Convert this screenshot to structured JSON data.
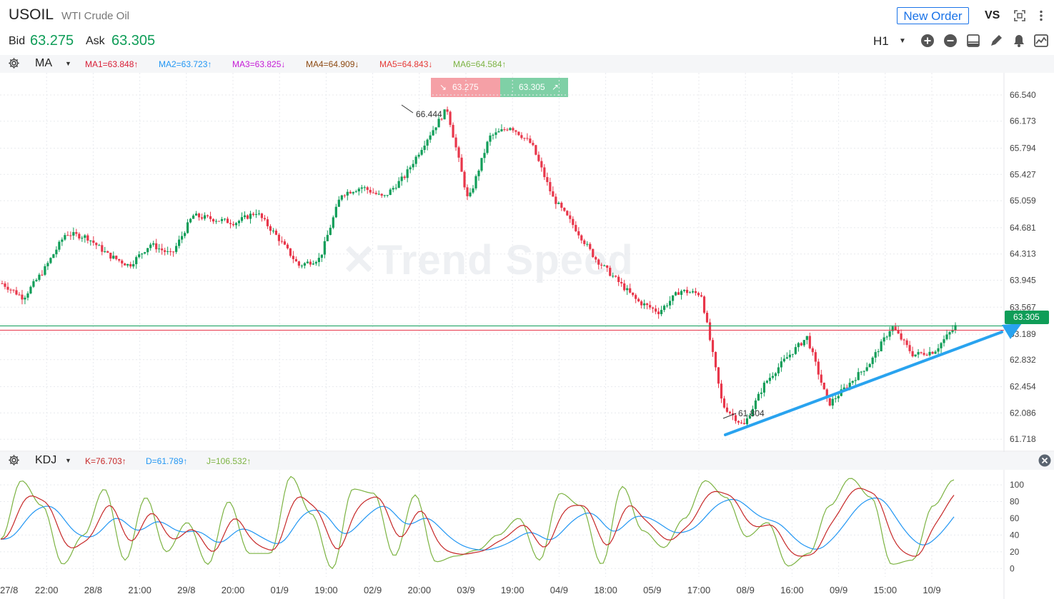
{
  "header": {
    "symbol": "USOIL",
    "name": "WTI Crude Oil",
    "bid_label": "Bid",
    "bid_value": "63.275",
    "ask_label": "Ask",
    "ask_value": "63.305",
    "new_order_label": "New Order",
    "vs_label": "VS",
    "timeframe": "H1"
  },
  "ma_bar": {
    "name": "MA",
    "items": [
      {
        "label": "MA1=63.848↑",
        "color": "#d81e36"
      },
      {
        "label": "MA2=63.723↑",
        "color": "#2196f3"
      },
      {
        "label": "MA3=63.825↓",
        "color": "#c51bd6"
      },
      {
        "label": "MA4=64.909↓",
        "color": "#8d4a12"
      },
      {
        "label": "MA5=64.843↓",
        "color": "#e53935"
      },
      {
        "label": "MA6=64.584↑",
        "color": "#7cb342"
      }
    ]
  },
  "kdj_bar": {
    "name": "KDJ",
    "items": [
      {
        "label": "K=76.703↑",
        "color": "#c62828"
      },
      {
        "label": "D=61.789↑",
        "color": "#2196f3"
      },
      {
        "label": "J=106.532↑",
        "color": "#7cb342"
      }
    ]
  },
  "price_boxes": {
    "sell": "63.275",
    "buy": "63.305"
  },
  "chart_annotations": {
    "high": "66.444",
    "low": "61.804",
    "current_price": "63.305",
    "watermark": "Trend Speed"
  },
  "colors": {
    "up": "#0f9d58",
    "down": "#e8364a",
    "trend_arrow": "#29a3ef",
    "accent": "#1a73e8"
  },
  "chart_data": [
    {
      "type": "candlestick",
      "title": "USOIL H1",
      "y_ticks": [
        "66.540",
        "66.173",
        "65.794",
        "65.427",
        "65.059",
        "64.681",
        "64.313",
        "63.945",
        "63.567",
        "63.189",
        "62.832",
        "62.454",
        "62.086",
        "61.718"
      ],
      "ylim": [
        61.55,
        66.85
      ],
      "x_labels": [
        "27/8",
        "22:00",
        "28/8",
        "21:00",
        "29/8",
        "20:00",
        "01/9",
        "19:00",
        "02/9",
        "20:00",
        "03/9",
        "19:00",
        "04/9",
        "18:00",
        "05/9",
        "17:00",
        "08/9",
        "16:00",
        "09/9",
        "15:00",
        "10/9"
      ],
      "close_path": [
        63.9,
        63.7,
        64.1,
        64.6,
        64.55,
        64.3,
        64.15,
        64.45,
        64.3,
        64.85,
        64.8,
        64.75,
        64.9,
        64.55,
        64.15,
        64.25,
        65.15,
        65.25,
        65.1,
        65.4,
        65.9,
        66.35,
        65.05,
        65.95,
        66.1,
        65.85,
        65.1,
        64.7,
        64.25,
        63.95,
        63.65,
        63.5,
        63.8,
        63.75,
        62.2,
        61.9,
        62.5,
        62.85,
        63.15,
        62.2,
        62.5,
        62.8,
        63.3,
        62.9,
        62.95,
        63.3
      ],
      "trend_arrow_from": 61.78,
      "trend_arrow_to": 63.27
    },
    {
      "type": "line",
      "title": "KDJ",
      "series": [
        {
          "name": "K",
          "color": "#c62828"
        },
        {
          "name": "D",
          "color": "#2196f3"
        },
        {
          "name": "J",
          "color": "#7cb342"
        }
      ],
      "y_ticks": [
        "100",
        "80",
        "60",
        "40",
        "20",
        "0"
      ],
      "ylim": [
        -10,
        118
      ],
      "J_values": [
        35,
        105,
        75,
        5,
        40,
        95,
        10,
        85,
        20,
        55,
        5,
        80,
        18,
        18,
        110,
        65,
        0,
        95,
        90,
        15,
        88,
        8,
        15,
        22,
        40,
        60,
        10,
        90,
        75,
        5,
        98,
        45,
        25,
        60,
        105,
        85,
        38,
        55,
        3,
        18,
        75,
        108,
        85,
        5,
        10,
        75,
        106
      ]
    }
  ]
}
